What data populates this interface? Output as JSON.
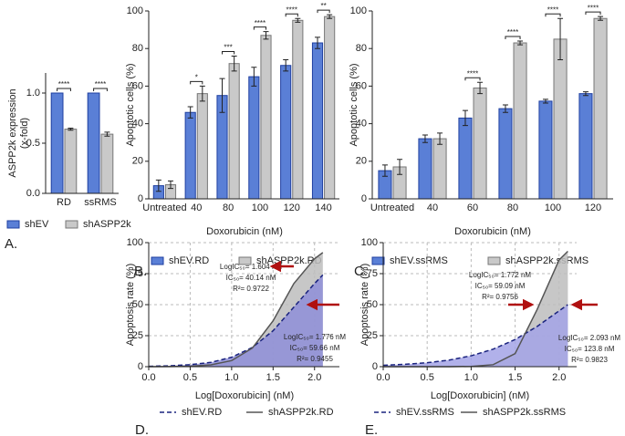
{
  "chart_data": [
    {
      "type": "bar",
      "label": "A.",
      "ylabel": [
        "ASPP2k expression",
        "(x-fold)"
      ],
      "categories": [
        "RD",
        "ssRMS"
      ],
      "series": [
        {
          "name": "shEV",
          "color": "#5a7fd6",
          "values": [
            1.0,
            1.0
          ]
        },
        {
          "name": "shASPP2k",
          "color": "#c9c9c9",
          "values": [
            0.64,
            0.59
          ],
          "errors": [
            0.01,
            0.02
          ]
        }
      ],
      "significance": [
        "****",
        "****"
      ],
      "ylim": [
        0,
        1.2
      ],
      "yticks": [
        {
          "value": 0,
          "label": "0.0"
        },
        0.5,
        {
          "value": 1,
          "label": "1.0"
        }
      ]
    },
    {
      "type": "bar",
      "label": "B.",
      "ylabel": "Apoptotic cells (%)",
      "xlabel": "Doxorubicin (nM)",
      "categories": [
        "Untreated",
        "40",
        "80",
        "100",
        "120",
        "140"
      ],
      "series": [
        {
          "name": "shEV.RD",
          "color": "#5a7fd6",
          "values": [
            7,
            46,
            55,
            65,
            71,
            83
          ],
          "errors": [
            3,
            3,
            9,
            5,
            3,
            3
          ]
        },
        {
          "name": "shASPP2k.RD",
          "color": "#c9c9c9",
          "values": [
            7.5,
            56,
            72,
            87,
            95,
            97
          ],
          "errors": [
            2,
            4,
            4,
            2,
            1,
            1
          ]
        }
      ],
      "significance": [
        null,
        "*",
        "***",
        "****",
        "****",
        "**"
      ],
      "ylim": [
        0,
        100
      ],
      "yticks": [
        0,
        20,
        40,
        60,
        80,
        100
      ]
    },
    {
      "type": "bar",
      "label": "C.",
      "ylabel": "Apoptotic cells (%)",
      "xlabel": "Doxorubicin (nM)",
      "categories": [
        "Untreated",
        "40",
        "60",
        "80",
        "100",
        "120"
      ],
      "series": [
        {
          "name": "shEV.ssRMS",
          "color": "#5a7fd6",
          "values": [
            15,
            32,
            43,
            48,
            52,
            56
          ],
          "errors": [
            3,
            2,
            4,
            2,
            1,
            1
          ]
        },
        {
          "name": "shASPP2k.ssRMS",
          "color": "#c9c9c9",
          "values": [
            17,
            32,
            59,
            83,
            85,
            96
          ],
          "errors": [
            4,
            3,
            3,
            1,
            11,
            1
          ]
        }
      ],
      "significance": [
        null,
        null,
        "****",
        "****",
        "****",
        "****"
      ],
      "ylim": [
        0,
        100
      ],
      "yticks": [
        0,
        20,
        40,
        60,
        80,
        100
      ]
    },
    {
      "type": "line",
      "label": "D.",
      "ylabel": "Apoptosis rate (%)",
      "xlabel": "Log[Doxorubicin] (nM)",
      "grid": true,
      "x": [
        0,
        0.25,
        0.5,
        0.75,
        1.0,
        1.25,
        1.5,
        1.75,
        2.0,
        2.1
      ],
      "series": [
        {
          "name": "shEV.RD",
          "color": "#1a237e",
          "fill": "#8e8ed8",
          "line_style": "dashed",
          "values": [
            0.3,
            0.7,
            1.6,
            3.5,
            7.6,
            15.5,
            29,
            48,
            67,
            74
          ]
        },
        {
          "name": "shASPP2k.RD",
          "color": "#555555",
          "fill": "#bdbdbd",
          "line_style": "solid",
          "values": [
            0,
            0.1,
            0.4,
            1.5,
            4.9,
            15,
            37,
            67,
            87,
            92
          ]
        }
      ],
      "annotations": [
        [
          "LogIC₅₀= 1.604 nM",
          "IC₅₀= 40.14 nM",
          "R²= 0.9722"
        ],
        [
          "LogIC₅₀= 1.776 nM",
          "IC₅₀= 59.66 nM",
          "R²= 0.9455"
        ]
      ],
      "xlim": [
        0,
        2.3
      ],
      "xticks": [
        {
          "value": 0,
          "label": "0.0"
        },
        0.5,
        {
          "value": 1,
          "label": "1.0"
        },
        1.5,
        {
          "value": 2,
          "label": "2.0"
        }
      ],
      "ylim": [
        0,
        100
      ],
      "yticks": [
        0,
        25,
        50,
        75,
        100
      ]
    },
    {
      "type": "line",
      "label": "E.",
      "ylabel": "Apoptosis rate (%)",
      "xlabel": "Log[Doxorubicin] (nM)",
      "grid": true,
      "x": [
        0,
        0.25,
        0.5,
        0.75,
        1.0,
        1.25,
        1.5,
        1.75,
        2.0,
        2.1
      ],
      "series": [
        {
          "name": "shEV.ssRMS",
          "color": "#1a237e",
          "fill": "#a3a3e6",
          "line_style": "dashed",
          "values": [
            1.1,
            1.9,
            3.2,
            5.3,
            8.8,
            14.1,
            21.9,
            32.4,
            45,
            50
          ]
        },
        {
          "name": "shASPP2k.ssRMS",
          "color": "#555555",
          "fill": "#bdbdbd",
          "line_style": "solid",
          "values": [
            0,
            0,
            0,
            0,
            0.2,
            1.6,
            10.5,
            46,
            86,
            93
          ]
        }
      ],
      "annotations": [
        [
          "LogIC₅₀= 1.772 nM",
          "IC₅₀= 59.09 nM",
          "R²= 0.9756"
        ],
        [
          "LogIC₅₀= 2.093 nM",
          "IC₅₀= 123.8 nM",
          "R²= 0.9823"
        ]
      ],
      "xlim": [
        0,
        2.2
      ],
      "xticks": [
        {
          "value": 0,
          "label": "0.0"
        },
        0.5,
        {
          "value": 1,
          "label": "1.0"
        },
        1.5,
        {
          "value": 2,
          "label": "2.0"
        }
      ],
      "ylim": [
        0,
        100
      ],
      "yticks": [
        0,
        25,
        50,
        75,
        100
      ]
    }
  ]
}
